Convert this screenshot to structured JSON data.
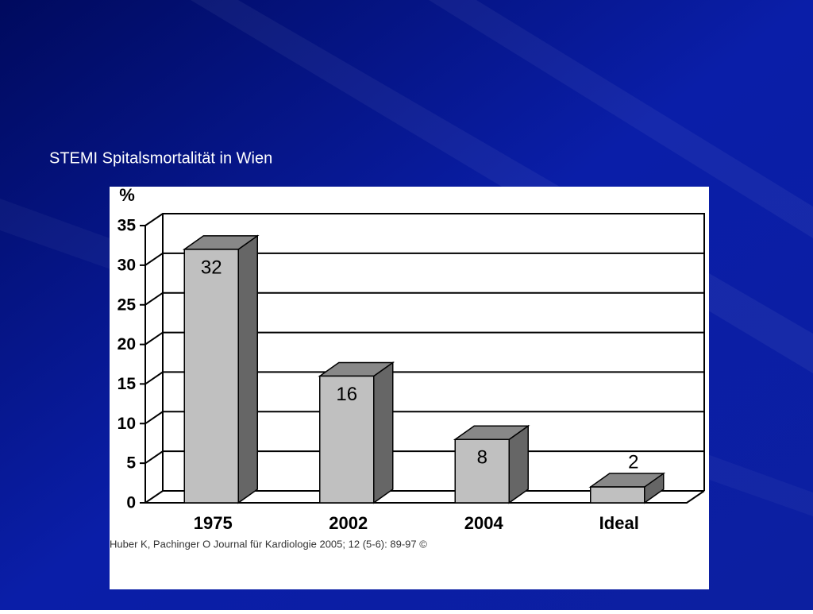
{
  "chart_data": {
    "type": "bar3d",
    "title": "STEMI Spitalsmortalität in Wien",
    "y_label": "%",
    "categories": [
      "1975",
      "2002",
      "2004",
      "Ideal"
    ],
    "values": [
      32,
      16,
      8,
      2
    ],
    "color": "#c0c0c0",
    "ylim": [
      0,
      35
    ],
    "yticks": [
      0,
      5,
      10,
      15,
      20,
      25,
      30,
      35
    ],
    "grid": true,
    "source": "Huber K, Pachinger O Journal für Kardiologie 2005; 12 (5-6): 89-97 ©"
  }
}
